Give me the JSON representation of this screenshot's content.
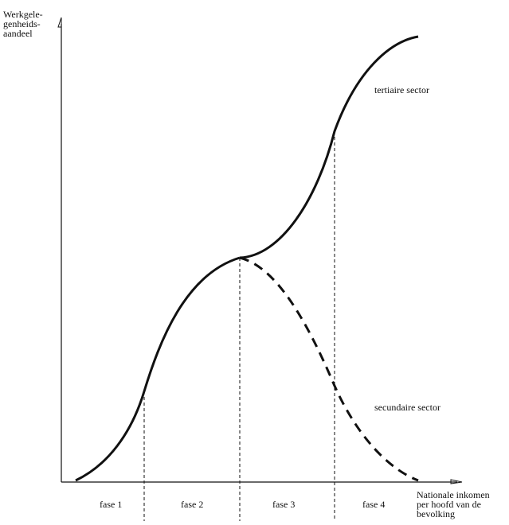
{
  "y_axis_label": [
    "Werkgele-",
    "genheids-",
    "aandeel"
  ],
  "x_axis_label": [
    "Nationale inkomen",
    "per hoofd van de",
    "bevolking"
  ],
  "curves": {
    "tertiary_label": "tertiaire sector",
    "secondary_label": "secundaire sector"
  },
  "phases": [
    "fase 1",
    "fase 2",
    "fase 3",
    "fase 4"
  ],
  "colors": {
    "ink": "#111111",
    "background": "#ffffff"
  }
}
